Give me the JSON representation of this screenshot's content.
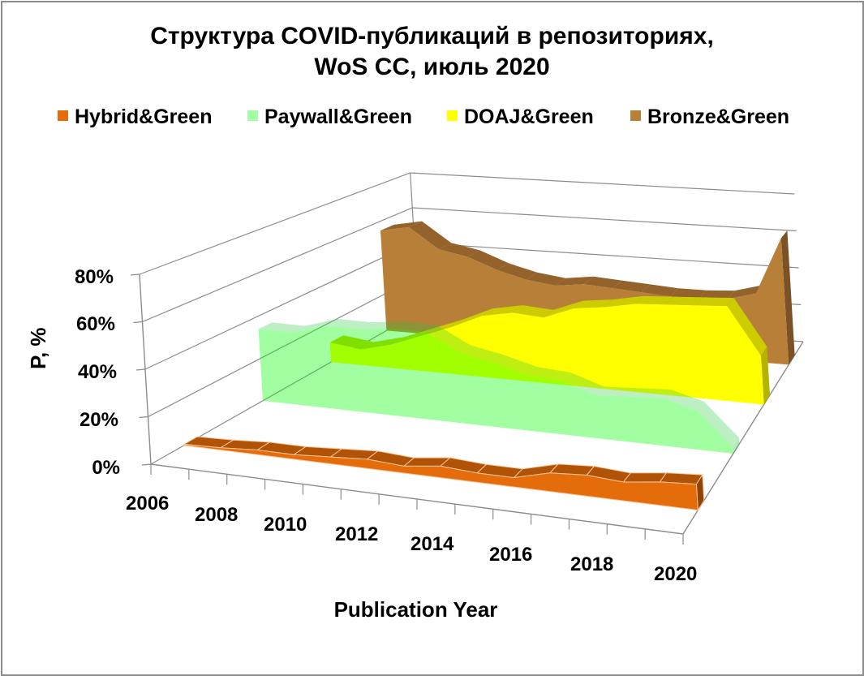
{
  "chart_data": {
    "type": "area",
    "subtype": "3d-area",
    "title": [
      "Структура COVID-публикаций в репозиториях,",
      "WoS CC, июль 2020"
    ],
    "xlabel": "Publication Year",
    "ylabel": "P, %",
    "ylim": [
      0,
      80
    ],
    "y_ticks": [
      "0%",
      "20%",
      "40%",
      "60%",
      "80%"
    ],
    "x": [
      2006,
      2007,
      2008,
      2009,
      2010,
      2011,
      2012,
      2013,
      2014,
      2015,
      2016,
      2017,
      2018,
      2019,
      2020
    ],
    "x_tick_labels": [
      "2006",
      "2008",
      "2010",
      "2012",
      "2014",
      "2016",
      "2018",
      "2020"
    ],
    "grid": true,
    "legend_position": "top",
    "series": [
      {
        "name": "Hybrid&Green",
        "color": "#E46C0A",
        "values": [
          0.5,
          1,
          2,
          2,
          3,
          4,
          3,
          5,
          4,
          4,
          8,
          9,
          8,
          10,
          11
        ]
      },
      {
        "name": "Paywall&Green",
        "color": "#99FF99",
        "values": [
          34,
          34,
          39,
          39,
          41,
          41,
          33,
          30,
          26,
          25,
          20,
          21,
          22,
          18,
          3
        ]
      },
      {
        "name": "DOAJ&Green",
        "color": "#FFFF00",
        "values": [
          10,
          8,
          12,
          18,
          24,
          31,
          34,
          33,
          39,
          41,
          44,
          45,
          46,
          47,
          24
        ]
      },
      {
        "name": "Bronze&Green",
        "color": "#B87F38",
        "values": [
          55,
          58,
          47,
          44,
          38,
          34,
          32,
          34,
          33,
          32,
          31,
          31,
          32,
          36,
          66
        ]
      }
    ]
  }
}
